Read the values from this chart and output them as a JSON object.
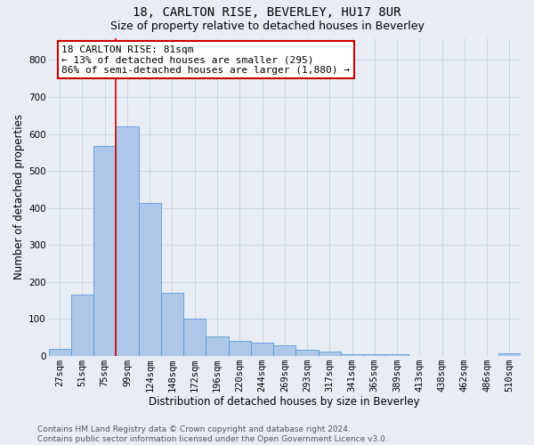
{
  "title1": "18, CARLTON RISE, BEVERLEY, HU17 8UR",
  "title2": "Size of property relative to detached houses in Beverley",
  "xlabel": "Distribution of detached houses by size in Beverley",
  "ylabel": "Number of detached properties",
  "bin_labels": [
    "27sqm",
    "51sqm",
    "75sqm",
    "99sqm",
    "124sqm",
    "148sqm",
    "172sqm",
    "196sqm",
    "220sqm",
    "244sqm",
    "269sqm",
    "293sqm",
    "317sqm",
    "341sqm",
    "365sqm",
    "389sqm",
    "413sqm",
    "438sqm",
    "462sqm",
    "486sqm",
    "510sqm"
  ],
  "bar_values": [
    20,
    165,
    567,
    620,
    413,
    172,
    101,
    52,
    41,
    36,
    29,
    16,
    11,
    5,
    5,
    5,
    0,
    0,
    0,
    0,
    8
  ],
  "bar_color": "#aec6e8",
  "bar_edge_color": "#5b9bd5",
  "vline_x_idx": 2.5,
  "vline_color": "#cc0000",
  "annotation_text": "18 CARLTON RISE: 81sqm\n← 13% of detached houses are smaller (295)\n86% of semi-detached houses are larger (1,880) →",
  "annotation_box_color": "#ffffff",
  "annotation_box_edge": "#cc0000",
  "ylim": [
    0,
    860
  ],
  "yticks": [
    0,
    100,
    200,
    300,
    400,
    500,
    600,
    700,
    800
  ],
  "grid_color": "#cdd5e3",
  "background_color": "#e8edf5",
  "footer_text": "Contains HM Land Registry data © Crown copyright and database right 2024.\nContains public sector information licensed under the Open Government Licence v3.0.",
  "title1_fontsize": 10,
  "title2_fontsize": 9,
  "xlabel_fontsize": 8.5,
  "ylabel_fontsize": 8.5,
  "tick_fontsize": 7.5,
  "annotation_fontsize": 8,
  "footer_fontsize": 6.5
}
